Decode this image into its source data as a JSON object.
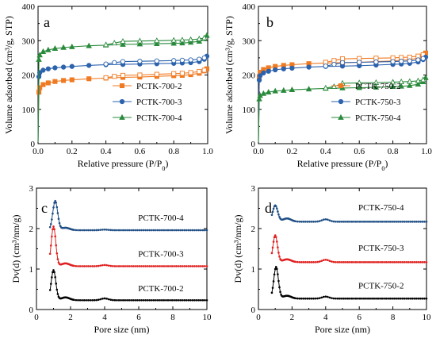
{
  "chart_data": [
    {
      "panel": "a",
      "type": "line",
      "xlabel": "Relative pressure (P/P",
      "xlabel_sub": "0",
      "xlabel_tail": ")",
      "ylabel": "Volume adsorbed (cm³/g, STP)",
      "xlim": [
        0,
        1.0
      ],
      "ylim": [
        0,
        400
      ],
      "xticks": [
        "0.0",
        "0.2",
        "0.4",
        "0.6",
        "0.8",
        "1.0"
      ],
      "yticks": [
        "0",
        "100",
        "200",
        "300",
        "400"
      ],
      "legend_position": "bottom-right",
      "series": [
        {
          "name": "PCTK-700-2",
          "color": "#f07a22",
          "marker": "square",
          "adsorption": {
            "x": [
              0.0,
              0.005,
              0.01,
              0.03,
              0.06,
              0.1,
              0.15,
              0.2,
              0.3,
              0.4,
              0.5,
              0.6,
              0.7,
              0.8,
              0.85,
              0.9,
              0.95,
              0.98,
              0.995
            ],
            "y": [
              5,
              150,
              163,
              172,
              177,
              181,
              184,
              186,
              189,
              191,
              193,
              194,
              196,
              198,
              199,
              201,
              205,
              212,
              218
            ]
          },
          "desorption": {
            "x": [
              0.995,
              0.98,
              0.95,
              0.9,
              0.85,
              0.8,
              0.7,
              0.6,
              0.5,
              0.45,
              0.4
            ],
            "y": [
              218,
              214,
              210,
              207,
              205,
              204,
              202,
              200,
              199,
              196,
              192
            ]
          }
        },
        {
          "name": "PCTK-700-3",
          "color": "#2d63ad",
          "marker": "circle",
          "adsorption": {
            "x": [
              0.0,
              0.005,
              0.01,
              0.03,
              0.06,
              0.1,
              0.15,
              0.2,
              0.3,
              0.4,
              0.5,
              0.6,
              0.7,
              0.8,
              0.85,
              0.9,
              0.95,
              0.98,
              0.995
            ],
            "y": [
              5,
              195,
              207,
              214,
              218,
              221,
              223,
              225,
              228,
              230,
              231,
              232,
              233,
              234,
              235,
              236,
              239,
              246,
              255
            ]
          },
          "desorption": {
            "x": [
              0.995,
              0.98,
              0.95,
              0.9,
              0.85,
              0.8,
              0.7,
              0.6,
              0.5,
              0.45,
              0.4
            ],
            "y": [
              255,
              250,
              246,
              244,
              243,
              242,
              241,
              240,
              239,
              236,
              232
            ]
          }
        },
        {
          "name": "PCTK-700-4",
          "color": "#2a8a3c",
          "marker": "triangle",
          "adsorption": {
            "x": [
              0.0,
              0.005,
              0.01,
              0.03,
              0.06,
              0.1,
              0.15,
              0.2,
              0.3,
              0.4,
              0.5,
              0.6,
              0.7,
              0.8,
              0.85,
              0.9,
              0.95,
              0.98,
              0.995
            ],
            "y": [
              5,
              245,
              258,
              268,
              273,
              277,
              280,
              282,
              285,
              287,
              289,
              290,
              291,
              292,
              293,
              295,
              298,
              306,
              315
            ]
          },
          "desorption": {
            "x": [
              0.995,
              0.98,
              0.95,
              0.9,
              0.85,
              0.8,
              0.7,
              0.6,
              0.5,
              0.45,
              0.4
            ],
            "y": [
              315,
              308,
              305,
              303,
              302,
              301,
              300,
              299,
              298,
              293,
              288
            ]
          }
        }
      ]
    },
    {
      "panel": "b",
      "type": "line",
      "xlabel": "Relative pressure (P/P",
      "xlabel_sub": "0",
      "xlabel_tail": ")",
      "ylabel": "Volume adsorbed (cm³/g, STP)",
      "xlim": [
        0,
        1.0
      ],
      "ylim": [
        0,
        400
      ],
      "xticks": [
        "0.0",
        "0.2",
        "0.4",
        "0.6",
        "0.8",
        "1.0"
      ],
      "yticks": [
        "0",
        "100",
        "200",
        "300",
        "400"
      ],
      "legend_position": "bottom-right",
      "series": [
        {
          "name": "PCTK-750-2",
          "color": "#f07a22",
          "marker": "square",
          "adsorption": {
            "x": [
              0.0,
              0.005,
              0.01,
              0.03,
              0.06,
              0.1,
              0.15,
              0.2,
              0.3,
              0.4,
              0.5,
              0.6,
              0.7,
              0.8,
              0.85,
              0.9,
              0.95,
              0.98,
              0.995
            ],
            "y": [
              5,
              195,
              208,
              216,
              221,
              225,
              228,
              230,
              233,
              235,
              236,
              237,
              239,
              241,
              243,
              245,
              249,
              256,
              264
            ]
          },
          "desorption": {
            "x": [
              0.995,
              0.98,
              0.95,
              0.9,
              0.85,
              0.8,
              0.7,
              0.6,
              0.5,
              0.45,
              0.4
            ],
            "y": [
              264,
              259,
              255,
              252,
              251,
              250,
              249,
              248,
              247,
              242,
              237
            ]
          }
        },
        {
          "name": "PCTK-750-3",
          "color": "#2d63ad",
          "marker": "circle",
          "adsorption": {
            "x": [
              0.0,
              0.005,
              0.01,
              0.03,
              0.06,
              0.1,
              0.15,
              0.2,
              0.3,
              0.4,
              0.5,
              0.6,
              0.7,
              0.8,
              0.85,
              0.9,
              0.95,
              0.98,
              0.995
            ],
            "y": [
              5,
              185,
              198,
              206,
              211,
              215,
              218,
              220,
              223,
              225,
              226,
              227,
              229,
              231,
              232,
              234,
              238,
              245,
              252
            ]
          },
          "desorption": {
            "x": [
              0.995,
              0.98,
              0.95,
              0.9,
              0.85,
              0.8,
              0.7,
              0.6,
              0.5,
              0.45,
              0.4
            ],
            "y": [
              252,
              248,
              244,
              241,
              240,
              239,
              238,
              237,
              236,
              231,
              226
            ]
          }
        },
        {
          "name": "PCTK-750-4",
          "color": "#2a8a3c",
          "marker": "triangle",
          "adsorption": {
            "x": [
              0.0,
              0.005,
              0.01,
              0.03,
              0.06,
              0.1,
              0.15,
              0.2,
              0.3,
              0.4,
              0.5,
              0.6,
              0.7,
              0.8,
              0.85,
              0.9,
              0.95,
              0.98,
              0.995
            ],
            "y": [
              5,
              130,
              140,
              146,
              150,
              153,
              155,
              157,
              159,
              161,
              162,
              163,
              164,
              166,
              167,
              169,
              173,
              180,
              192
            ]
          },
          "desorption": {
            "x": [
              0.995,
              0.98,
              0.95,
              0.9,
              0.85,
              0.8,
              0.7,
              0.6,
              0.5,
              0.45,
              0.4
            ],
            "y": [
              192,
              186,
              183,
              181,
              180,
              179,
              178,
              177,
              176,
              166,
              162
            ]
          }
        }
      ]
    },
    {
      "panel": "c",
      "type": "line",
      "xlabel": "Pore size (nm)",
      "ylabel": "Dv(d) (cm³/nm/g)",
      "xlim": [
        0,
        10
      ],
      "ylim": [
        0,
        3
      ],
      "xticks": [
        "0",
        "2",
        "4",
        "6",
        "8",
        "10"
      ],
      "yticks": [
        "0",
        "1",
        "2",
        "3"
      ],
      "series": [
        {
          "name": "PCTK-700-4",
          "color": "#1f4e85",
          "label_pos": [
            7.3,
            2.2
          ],
          "peak_x": 1.1,
          "peak_h": 0.72,
          "peak_w": 0.28,
          "base": 1.96,
          "tail_h": 0.06,
          "bump_h": 0.015
        },
        {
          "name": "PCTK-700-3",
          "color": "#e02020",
          "label_pos": [
            7.3,
            1.3
          ],
          "peak_x": 1.0,
          "peak_h": 0.98,
          "peak_w": 0.26,
          "base": 1.07,
          "tail_h": 0.07,
          "bump_h": 0.03
        },
        {
          "name": "PCTK-700-2",
          "color": "#000000",
          "label_pos": [
            7.3,
            0.45
          ],
          "peak_x": 1.0,
          "peak_h": 0.74,
          "peak_w": 0.27,
          "base": 0.23,
          "tail_h": 0.07,
          "bump_h": 0.045
        }
      ]
    },
    {
      "panel": "d",
      "type": "line",
      "xlabel": "Pore size (nm)",
      "ylabel": "Dv(d) (cm³/nm/g)",
      "xlim": [
        0,
        10
      ],
      "ylim": [
        0,
        3
      ],
      "xticks": [
        "0",
        "2",
        "4",
        "6",
        "8",
        "10"
      ],
      "yticks": [
        "0",
        "1",
        "2",
        "3"
      ],
      "series": [
        {
          "name": "PCTK-750-4",
          "color": "#1f4e85",
          "label_pos": [
            7.3,
            2.45
          ],
          "peak_x": 1.0,
          "peak_h": 0.4,
          "peak_w": 0.3,
          "base": 2.17,
          "tail_h": 0.08,
          "bump_h": 0.06
        },
        {
          "name": "PCTK-750-3",
          "color": "#e02020",
          "label_pos": [
            7.3,
            1.45
          ],
          "peak_x": 1.0,
          "peak_h": 0.66,
          "peak_w": 0.27,
          "base": 1.17,
          "tail_h": 0.07,
          "bump_h": 0.06
        },
        {
          "name": "PCTK-750-2",
          "color": "#000000",
          "label_pos": [
            7.3,
            0.52
          ],
          "peak_x": 1.05,
          "peak_h": 0.78,
          "peak_w": 0.27,
          "base": 0.27,
          "tail_h": 0.07,
          "bump_h": 0.05
        }
      ]
    }
  ]
}
